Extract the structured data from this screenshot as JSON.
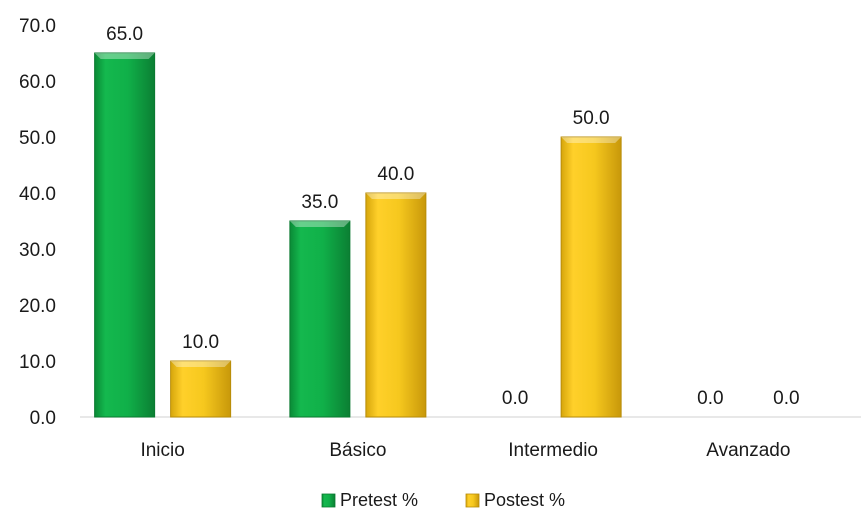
{
  "chart_data": {
    "type": "bar",
    "categories": [
      "Inicio",
      "Básico",
      "Intermedio",
      "Avanzado"
    ],
    "series": [
      {
        "name": "Pretest %",
        "values": [
          65.0,
          35.0,
          0.0,
          0.0
        ],
        "color": "#12b24a",
        "value_labels": [
          "65.0",
          "35.0",
          "0.0",
          "0.0"
        ]
      },
      {
        "name": "Postest %",
        "values": [
          10.0,
          40.0,
          50.0,
          0.0
        ],
        "color": "#f2c318",
        "value_labels": [
          "10.0",
          "40.0",
          "50.0",
          "0.0"
        ]
      }
    ],
    "yticks": [
      "0.0",
      "10.0",
      "20.0",
      "30.0",
      "40.0",
      "50.0",
      "60.0",
      "70.0"
    ],
    "ylim": [
      0,
      70
    ],
    "grid": false,
    "legend_position": "bottom",
    "title": "",
    "xlabel": "",
    "ylabel": ""
  }
}
